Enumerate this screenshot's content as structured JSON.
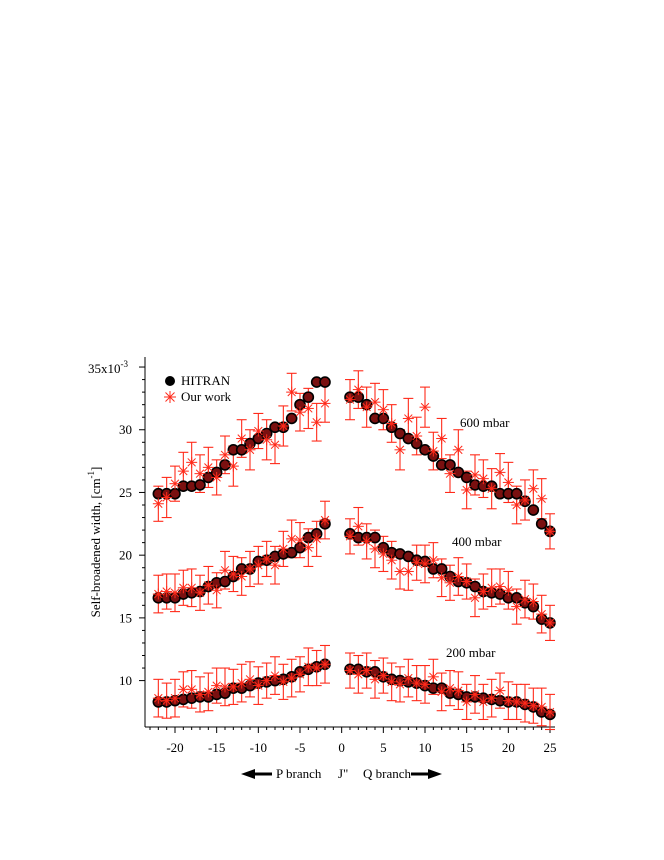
{
  "chart_data": {
    "type": "scatter",
    "ylabel_main": "Self-broadened width, [cm",
    "ylabel_sup": "-1",
    "ylabel_end": "]",
    "xlabel": "J\"",
    "p_branch_label": "P branch",
    "q_branch_label": "Q branch",
    "ylim": [
      6.3,
      35.8
    ],
    "xlim": [
      -23.6,
      25.6
    ],
    "y_multiplier_label": "x10",
    "y_multiplier_exp": "-3",
    "x_ticks": [
      -20,
      -15,
      -10,
      -5,
      0,
      5,
      10,
      15,
      20,
      25
    ],
    "x_tick_labels": [
      "-20",
      "-15",
      "-10",
      "-5",
      "0",
      "5",
      "10",
      "15",
      "20",
      "25"
    ],
    "y_ticks": [
      10,
      15,
      20,
      25,
      30,
      35
    ],
    "y_tick_labels": [
      "10",
      "15",
      "20",
      "25",
      "30",
      "35"
    ],
    "legend": [
      "HITRAN",
      "Our work"
    ],
    "annotations": [
      "600 mbar",
      "400 mbar",
      "200 mbar"
    ],
    "colors": {
      "hitran": "#000000",
      "ours": "#ff2a1a",
      "hitran_fill": "#7a1010"
    },
    "x": [
      -22,
      -21,
      -20,
      -19,
      -18,
      -17,
      -16,
      -15,
      -14,
      -13,
      -12,
      -11,
      -10,
      -9,
      -8,
      -7,
      -6,
      -5,
      -4,
      -3,
      -2,
      1,
      2,
      3,
      4,
      5,
      6,
      7,
      8,
      9,
      10,
      11,
      12,
      13,
      14,
      15,
      16,
      17,
      18,
      19,
      20,
      21,
      22,
      23,
      24,
      25
    ],
    "series": [
      {
        "name": "HITRAN",
        "group": "600 mbar",
        "values": [
          24.9,
          24.9,
          24.9,
          25.5,
          25.5,
          25.6,
          26.2,
          26.6,
          27.2,
          28.4,
          28.4,
          28.9,
          29.3,
          29.7,
          30.2,
          30.2,
          30.9,
          32.0,
          32.6,
          33.8,
          33.8,
          32.6,
          32.6,
          32.0,
          30.9,
          30.9,
          30.2,
          29.7,
          29.3,
          28.9,
          28.4,
          27.9,
          27.2,
          27.2,
          26.6,
          26.2,
          25.6,
          25.5,
          25.5,
          24.9,
          24.9,
          24.9,
          24.3,
          23.6,
          22.5,
          21.9
        ]
      },
      {
        "name": "Our work",
        "group": "600 mbar",
        "values": [
          24.1,
          24.6,
          25.7,
          26.7,
          27.4,
          26.5,
          27.0,
          26.2,
          28.0,
          27.1,
          29.3,
          28.4,
          29.9,
          29.2,
          28.8,
          30.3,
          33.0,
          31.4,
          31.7,
          30.6,
          32.1,
          32.4,
          33.2,
          31.8,
          32.2,
          31.6,
          30.5,
          28.4,
          30.9,
          29.5,
          31.8,
          28.3,
          29.3,
          26.5,
          28.4,
          25.2,
          26.4,
          26.1,
          25.3,
          26.6,
          25.8,
          24.0,
          24.4,
          25.3,
          24.5,
          21.9
        ],
        "errors": [
          1.4,
          1.6,
          1.4,
          1.5,
          1.6,
          1.5,
          1.6,
          1.4,
          1.5,
          1.6,
          1.5,
          1.6,
          1.4,
          1.6,
          1.5,
          1.6,
          1.5,
          1.5,
          1.6,
          1.5,
          1.5,
          1.6,
          1.5,
          1.6,
          1.5,
          1.6,
          1.5,
          1.6,
          1.6,
          1.5,
          1.6,
          1.5,
          1.6,
          1.5,
          1.6,
          1.5,
          1.6,
          1.5,
          1.6,
          1.5,
          1.6,
          1.5,
          1.6,
          1.5,
          1.6,
          1.4
        ]
      },
      {
        "name": "HITRAN",
        "group": "400 mbar",
        "values": [
          16.6,
          16.6,
          16.6,
          16.9,
          17.0,
          17.1,
          17.5,
          17.8,
          17.9,
          18.3,
          18.9,
          18.9,
          19.5,
          19.6,
          19.9,
          20.1,
          20.2,
          20.6,
          21.4,
          21.7,
          22.5,
          21.7,
          21.4,
          21.4,
          21.4,
          20.6,
          20.2,
          20.1,
          19.9,
          19.6,
          19.5,
          18.9,
          18.9,
          18.3,
          17.9,
          17.8,
          17.5,
          17.1,
          17.0,
          16.9,
          16.6,
          16.6,
          16.2,
          15.9,
          14.9,
          14.6
        ]
      },
      {
        "name": "Our work",
        "group": "400 mbar",
        "values": [
          16.9,
          17.1,
          17.0,
          17.4,
          17.4,
          17.0,
          17.6,
          17.2,
          18.8,
          18.5,
          18.3,
          18.9,
          19.2,
          19.7,
          19.2,
          20.5,
          21.3,
          21.2,
          20.6,
          21.3,
          22.8,
          21.5,
          22.3,
          21.1,
          20.5,
          20.1,
          19.6,
          18.7,
          18.7,
          19.4,
          19.3,
          19.6,
          18.2,
          17.8,
          18.3,
          17.9,
          16.6,
          17.1,
          17.4,
          17.5,
          17.2,
          15.9,
          16.5,
          16.3,
          15.3,
          14.6
        ],
        "errors": [
          1.5,
          1.4,
          1.5,
          1.4,
          1.5,
          1.4,
          1.5,
          1.4,
          1.5,
          1.4,
          1.5,
          1.4,
          1.5,
          1.4,
          1.5,
          1.4,
          1.5,
          1.4,
          1.5,
          1.4,
          1.5,
          1.4,
          1.5,
          1.4,
          1.5,
          1.4,
          1.5,
          1.4,
          1.5,
          1.4,
          1.5,
          1.4,
          1.5,
          1.4,
          1.5,
          1.4,
          1.5,
          1.4,
          1.5,
          1.4,
          1.5,
          1.4,
          1.5,
          1.4,
          1.5,
          1.4
        ]
      },
      {
        "name": "HITRAN",
        "group": "200 mbar",
        "values": [
          8.3,
          8.3,
          8.4,
          8.5,
          8.6,
          8.7,
          8.7,
          8.9,
          9.0,
          9.4,
          9.4,
          9.6,
          9.8,
          9.9,
          10.0,
          10.1,
          10.3,
          10.7,
          10.9,
          11.1,
          11.3,
          10.9,
          10.9,
          10.7,
          10.7,
          10.3,
          10.1,
          10.0,
          9.9,
          9.8,
          9.6,
          9.4,
          9.4,
          9.0,
          8.9,
          8.7,
          8.7,
          8.6,
          8.5,
          8.4,
          8.3,
          8.3,
          8.1,
          7.9,
          7.5,
          7.3
        ]
      },
      {
        "name": "Our work",
        "group": "200 mbar",
        "values": [
          8.6,
          8.4,
          8.6,
          9.3,
          9.3,
          8.9,
          9.1,
          9.6,
          9.5,
          9.5,
          9.8,
          10.1,
          9.6,
          10.0,
          10.4,
          9.9,
          10.2,
          10.5,
          11.1,
          11.0,
          11.3,
          10.8,
          10.5,
          10.8,
          10.1,
          10.4,
          9.9,
          9.7,
          10.2,
          9.8,
          9.7,
          10.3,
          9.1,
          9.4,
          9.2,
          8.3,
          8.9,
          8.3,
          8.6,
          9.2,
          8.4,
          8.3,
          8.2,
          8.0,
          7.9,
          7.5
        ],
        "errors": [
          1.5,
          1.4,
          1.5,
          1.4,
          1.5,
          1.4,
          1.5,
          1.4,
          1.5,
          1.4,
          1.5,
          1.4,
          1.5,
          1.4,
          1.5,
          1.4,
          1.5,
          1.4,
          1.5,
          1.4,
          1.5,
          1.4,
          1.5,
          1.4,
          1.5,
          1.4,
          1.5,
          1.4,
          1.5,
          1.4,
          1.5,
          1.4,
          1.5,
          1.4,
          1.5,
          1.4,
          1.5,
          1.4,
          1.5,
          1.4,
          1.5,
          1.4,
          1.5,
          1.4,
          1.5,
          1.4
        ]
      }
    ]
  }
}
